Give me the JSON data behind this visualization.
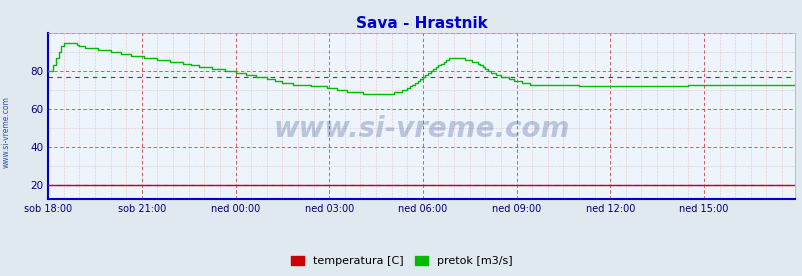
{
  "title": "Sava - Hrastnik",
  "title_color": "#0000cc",
  "title_fontsize": 11,
  "bg_color": "#e0e8f0",
  "plot_bg_color": "#eef4fb",
  "grid_color_major": "#cc4444",
  "grid_color_minor": "#dd9999",
  "grid_color_minor_v": "#cc99bb",
  "xlabel_color": "#000077",
  "ylabel_color": "#000077",
  "tick_labels": [
    "sob 18:00",
    "sob 21:00",
    "ned 00:00",
    "ned 03:00",
    "ned 06:00",
    "ned 09:00",
    "ned 12:00",
    "ned 15:00"
  ],
  "yticks": [
    20,
    40,
    60,
    80
  ],
  "ylim": [
    13,
    100
  ],
  "xlim": [
    0,
    287
  ],
  "avg_flow": 77.0,
  "avg_temp": 20.3,
  "legend_temp_label": "temperatura [C]",
  "legend_flow_label": "pretok [m3/s]",
  "temp_color": "#cc0000",
  "flow_color": "#00bb00",
  "avg_line_color_flow": "#007700",
  "avg_line_color_temp": "#0000bb",
  "watermark": "www.si-vreme.com",
  "side_label": "www.si-vreme.com",
  "flow_data": [
    80,
    80,
    83,
    87,
    90,
    93,
    95,
    95,
    95,
    95,
    95,
    94,
    93,
    93,
    92,
    92,
    92,
    92,
    92,
    91,
    91,
    91,
    91,
    91,
    90,
    90,
    90,
    90,
    89,
    89,
    89,
    89,
    88,
    88,
    88,
    88,
    88,
    87,
    87,
    87,
    87,
    87,
    86,
    86,
    86,
    86,
    86,
    85,
    85,
    85,
    85,
    85,
    84,
    84,
    84,
    83,
    83,
    83,
    82,
    82,
    82,
    82,
    82,
    81,
    81,
    81,
    81,
    81,
    80,
    80,
    80,
    80,
    79,
    79,
    79,
    79,
    78,
    78,
    78,
    78,
    77,
    77,
    77,
    77,
    76,
    76,
    76,
    75,
    75,
    75,
    74,
    74,
    74,
    74,
    73,
    73,
    73,
    73,
    73,
    73,
    73,
    72,
    72,
    72,
    72,
    72,
    72,
    71,
    71,
    71,
    71,
    70,
    70,
    70,
    70,
    69,
    69,
    69,
    69,
    69,
    69,
    68,
    68,
    68,
    68,
    68,
    68,
    68,
    68,
    68,
    68,
    68,
    68,
    69,
    69,
    69,
    70,
    70,
    71,
    72,
    73,
    74,
    75,
    76,
    77,
    78,
    79,
    80,
    81,
    82,
    83,
    84,
    85,
    86,
    87,
    87,
    87,
    87,
    87,
    87,
    86,
    86,
    86,
    85,
    85,
    84,
    83,
    82,
    81,
    80,
    79,
    79,
    78,
    78,
    77,
    77,
    77,
    76,
    76,
    75,
    75,
    75,
    74,
    74,
    74,
    73,
    73,
    73,
    73,
    73,
    73,
    73,
    73,
    73,
    73,
    73,
    73,
    73,
    73,
    73,
    73,
    73,
    73,
    73,
    72,
    72,
    72,
    72,
    72,
    72,
    72,
    72,
    72,
    72,
    72,
    72,
    72,
    72,
    72,
    72,
    72,
    72,
    72,
    72,
    72,
    72,
    72,
    72,
    72,
    72,
    72,
    72,
    72,
    72,
    72,
    72,
    72,
    72,
    72,
    72,
    72,
    72,
    72,
    72,
    72,
    72,
    73,
    73,
    73,
    73,
    73,
    73,
    73,
    73,
    73,
    73,
    73,
    73,
    73,
    73,
    73,
    73,
    73,
    73,
    73,
    73,
    73,
    73,
    73,
    73,
    73,
    73,
    73,
    73,
    73,
    73,
    73,
    73,
    73,
    73,
    73,
    73,
    73,
    73,
    73,
    73,
    73,
    73
  ],
  "temp_data": [
    20,
    20,
    20,
    20,
    20,
    20,
    20,
    20,
    20,
    20,
    20,
    20,
    20,
    20,
    20,
    20,
    20,
    20,
    20,
    20,
    20,
    20,
    20,
    20,
    20,
    20,
    20,
    20,
    20,
    20,
    20,
    20,
    20,
    20,
    20,
    20,
    20,
    20,
    20,
    20,
    20,
    20,
    20,
    20,
    20,
    20,
    20,
    20,
    20,
    20,
    20,
    20,
    20,
    20,
    20,
    20,
    20,
    20,
    20,
    20,
    20,
    20,
    20,
    20,
    20,
    20,
    20,
    20,
    20,
    20,
    20,
    20,
    20,
    20,
    20,
    20,
    20,
    20,
    20,
    20,
    20,
    20,
    20,
    20,
    20,
    20,
    20,
    20,
    20,
    20,
    20,
    20,
    20,
    20,
    20,
    20,
    20,
    20,
    20,
    20,
    20,
    20,
    20,
    20,
    20,
    20,
    20,
    20,
    20,
    20,
    20,
    20,
    20,
    20,
    20,
    20,
    20,
    20,
    20,
    20,
    20,
    20,
    20,
    20,
    20,
    20,
    20,
    20,
    20,
    20,
    20,
    20,
    20,
    20,
    20,
    20,
    20,
    20,
    20,
    20,
    20,
    20,
    20,
    20,
    20,
    20,
    20,
    20,
    20,
    20,
    20,
    20,
    20,
    20,
    20,
    20,
    20,
    20,
    20,
    20,
    20,
    20,
    20,
    20,
    20,
    20,
    20,
    20,
    20,
    20,
    20,
    20,
    20,
    20,
    20,
    20,
    20,
    20,
    20,
    20,
    20,
    20,
    20,
    20,
    20,
    20,
    20,
    20,
    20,
    20,
    20,
    20,
    20,
    20,
    20,
    20,
    20,
    20,
    20,
    20,
    20,
    20,
    20,
    20,
    20,
    20,
    20,
    20,
    20,
    20,
    20,
    20,
    20,
    20,
    20,
    20,
    20,
    20,
    20,
    20,
    20,
    20,
    20,
    20,
    20,
    20,
    20,
    20,
    20,
    20,
    20,
    20,
    20,
    20,
    20,
    20,
    20,
    20,
    20,
    20,
    20,
    20,
    20,
    20,
    20,
    20,
    20,
    20,
    20,
    20,
    20,
    20,
    20,
    20,
    20,
    20,
    20,
    20,
    20,
    20,
    20,
    20,
    20,
    20,
    20,
    20,
    20,
    20,
    20,
    20,
    20,
    20,
    20,
    20,
    20,
    20,
    20,
    20,
    20,
    20,
    20,
    20,
    20,
    20,
    20,
    20,
    20,
    20
  ]
}
